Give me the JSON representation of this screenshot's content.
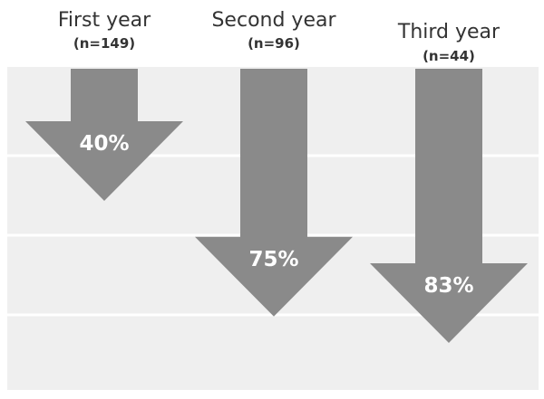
{
  "chart_data": {
    "type": "bar",
    "orientation": "downward-arrows",
    "title": "",
    "xlabel": "",
    "ylabel": "",
    "ylim": [
      0,
      100
    ],
    "grid": true,
    "categories": [
      {
        "label": "First year",
        "n_label": "(n=149)",
        "value": 40,
        "value_label": "40%"
      },
      {
        "label": "Second year",
        "n_label": "(n=96)",
        "value": 75,
        "value_label": "75%"
      },
      {
        "label": "Third year",
        "n_label": "(n=44)",
        "value": 83,
        "value_label": "83%"
      }
    ]
  },
  "colors": {
    "arrow": "#8a8a8a",
    "band": "#efefef",
    "gridline": "#ffffff",
    "heading_text": "#333333",
    "value_text": "#ffffff"
  }
}
